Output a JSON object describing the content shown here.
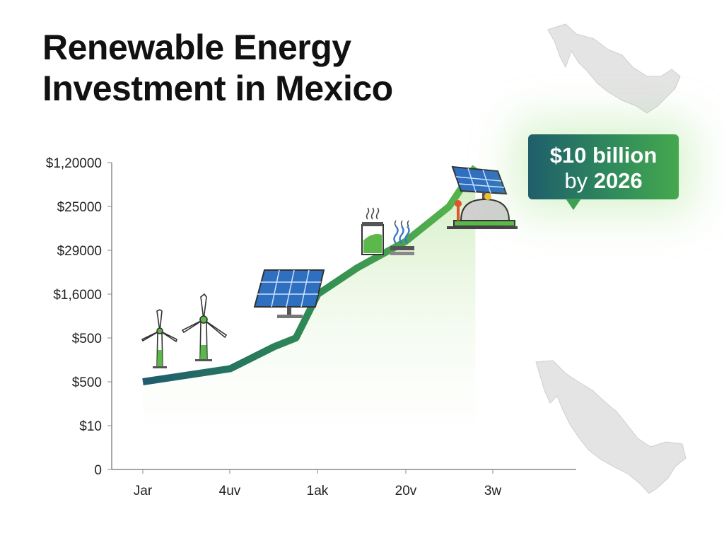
{
  "title": {
    "line1": "Renewable Energy",
    "line2": "Investment in Mexico"
  },
  "callout": {
    "amount": "$10 billion",
    "by_word": "by",
    "year": "2026"
  },
  "colors": {
    "line_start": "#1e5b6e",
    "line_end": "#5cb84a",
    "area_fill": "#d6efc2",
    "axis": "#8a8a8a",
    "map": "#e3e3e3",
    "solar_panel": "#2f6fc0",
    "accent_green": "#5cb84a"
  },
  "icons": [
    "wind-turbine-icon",
    "wind-turbine-icon",
    "solar-panel-icon",
    "battery-geothermal-icon",
    "solar-power-plant-icon",
    "mexico-map-icon"
  ],
  "chart_data": {
    "type": "line",
    "title": "Renewable Energy Investment in Mexico",
    "xlabel": "",
    "ylabel": "",
    "categories": [
      "Jar",
      "4uv",
      "1ak",
      "20v",
      "3w"
    ],
    "y_tick_labels": [
      "0",
      "$10",
      "$500",
      "$500",
      "$1,6000",
      "$29000",
      "$25000",
      "$1,20000"
    ],
    "y_scale": "ordinal tick levels (labels as printed)",
    "series": [
      {
        "x": [
          0,
          1,
          1.5,
          1.75,
          2,
          2.45,
          3,
          3.5,
          3.8
        ],
        "y_level": [
          2.0,
          2.3,
          2.8,
          3.0,
          4.0,
          4.6,
          5.2,
          6.0,
          6.9
        ]
      }
    ],
    "annotation": "$10 billion by 2026",
    "grid": false,
    "legend": "none"
  }
}
